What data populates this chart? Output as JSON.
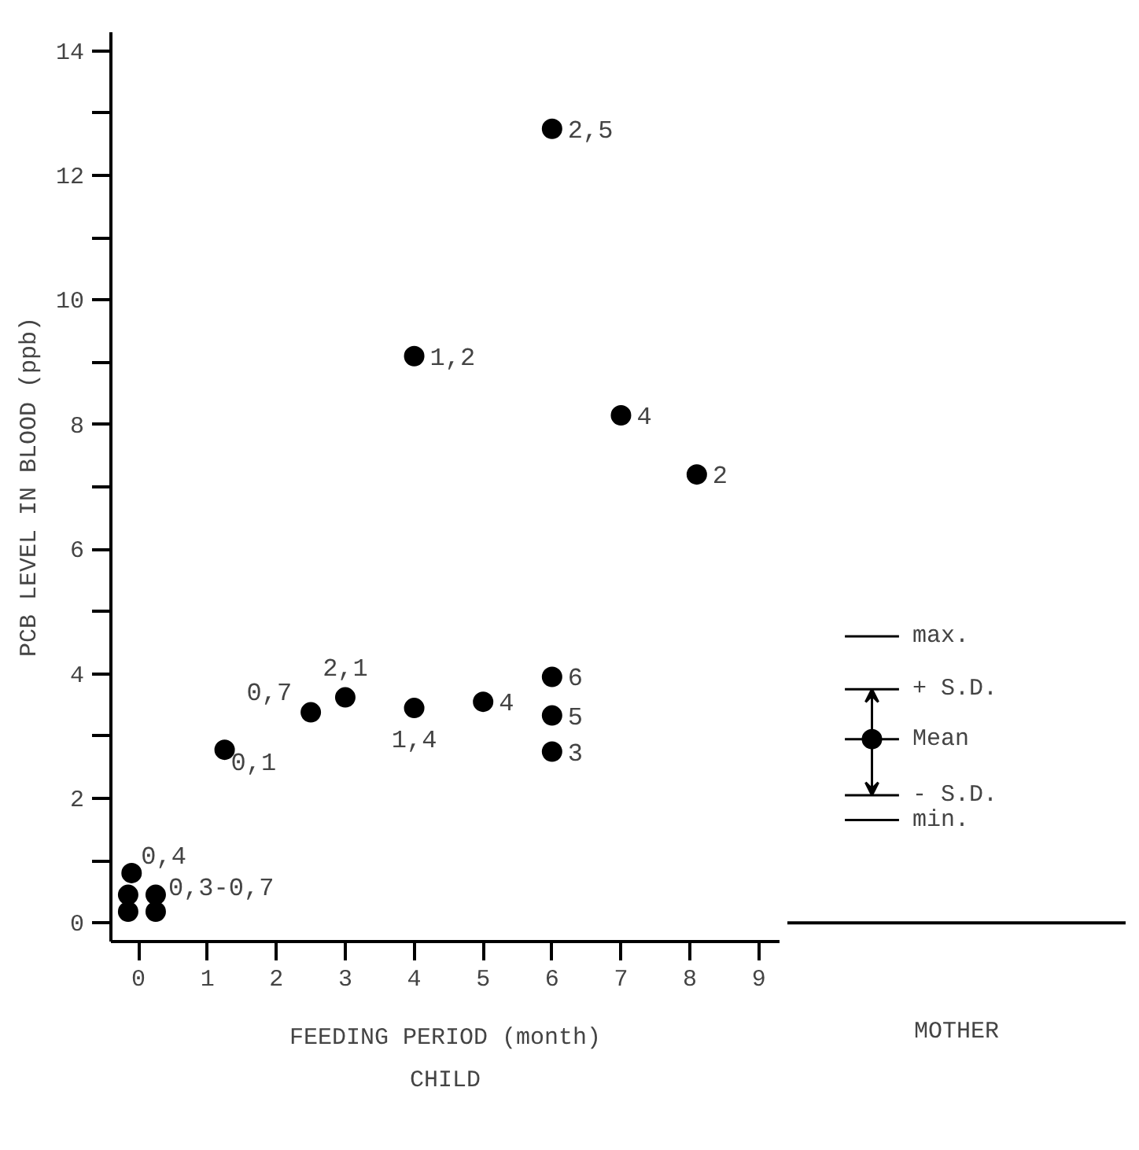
{
  "chart_data": {
    "type": "scatter",
    "xlabel": "FEEDING PERIOD (month)",
    "ylabel": "PCB LEVEL IN BLOOD (ppb)",
    "x": [
      -0.1,
      -0.15,
      0.25,
      -0.15,
      0.25,
      1.25,
      2.5,
      3.0,
      4.0,
      5.0,
      6.0,
      6.0,
      6.0,
      6.0,
      4.0,
      7.0,
      8.1
    ],
    "series": [
      {
        "color": "#000000",
        "values": [
          0.8,
          0.45,
          0.45,
          0.18,
          0.18,
          2.78,
          3.38,
          3.62,
          3.45,
          3.55,
          3.95,
          3.33,
          2.75,
          12.75,
          9.1,
          8.15,
          7.2
        ]
      }
    ],
    "xlim": [
      -0.4,
      9.3
    ],
    "ylim": [
      -0.3,
      14.3
    ],
    "xticks": [
      0,
      1,
      2,
      3,
      4,
      5,
      6,
      7,
      8,
      9
    ],
    "yticks": [
      0,
      {
        "value": 1,
        "label": null
      },
      2,
      {
        "value": 3,
        "label": null
      },
      4,
      {
        "value": 5,
        "label": null
      },
      6,
      {
        "value": 7,
        "label": null
      },
      8,
      {
        "value": 9,
        "label": null
      },
      10,
      {
        "value": 11,
        "label": null
      },
      12,
      {
        "value": 13,
        "label": null
      },
      14
    ],
    "marker": "circle",
    "grid": false,
    "annotations": [
      {
        "text": "0,4",
        "x": -0.1,
        "y": 0.8
      },
      {
        "text": "0,3-0,7",
        "x": 0.25,
        "y": 0.45
      },
      {
        "text": "0,1",
        "x": 1.25,
        "y": 2.78
      },
      {
        "text": "0,7",
        "x": 2.5,
        "y": 3.38
      },
      {
        "text": "2,1",
        "x": 3.0,
        "y": 3.62
      },
      {
        "text": "1,4",
        "x": 4.0,
        "y": 3.45
      },
      {
        "text": "4",
        "x": 5.0,
        "y": 3.55
      },
      {
        "text": "6",
        "x": 6.0,
        "y": 3.95
      },
      {
        "text": "5",
        "x": 6.0,
        "y": 3.33
      },
      {
        "text": "3",
        "x": 6.0,
        "y": 2.75
      },
      {
        "text": "2,5",
        "x": 6.0,
        "y": 12.75
      },
      {
        "text": "1,2",
        "x": 4.0,
        "y": 9.1
      },
      {
        "text": "4",
        "x": 7.0,
        "y": 8.15
      },
      {
        "text": "2",
        "x": 8.1,
        "y": 7.2
      },
      "CHILD",
      "MOTHER",
      "max.",
      "+ S.D.",
      "Mean",
      "- S.D.",
      "min."
    ]
  }
}
